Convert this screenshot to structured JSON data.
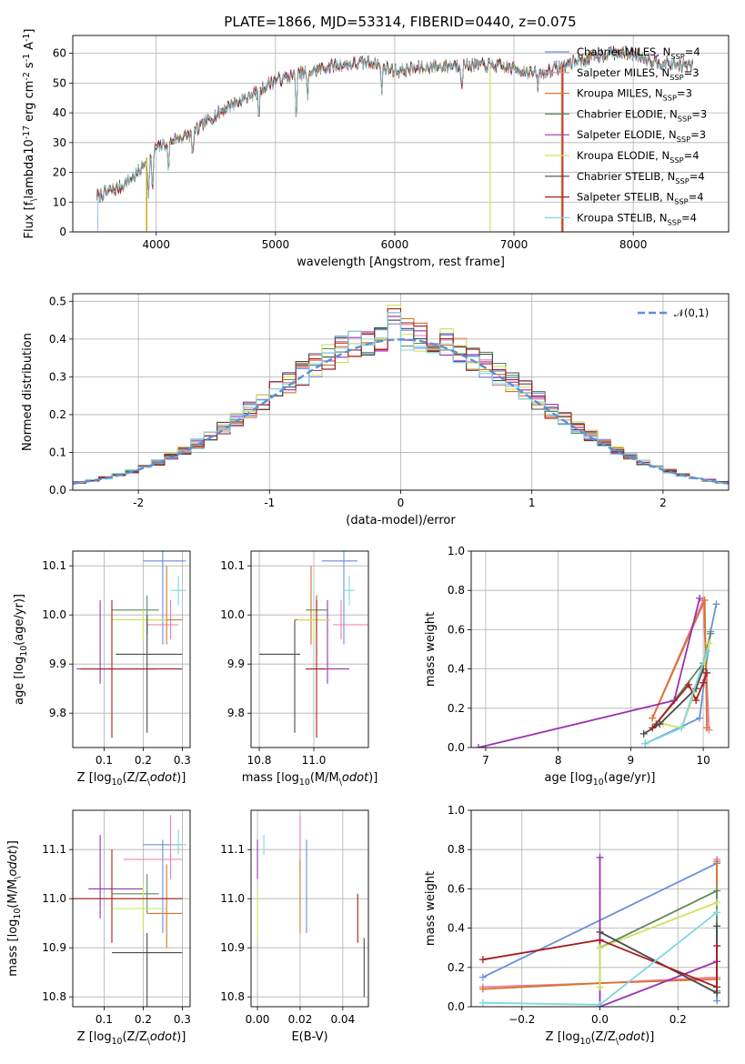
{
  "figure": {
    "title": "PLATE=1866, MJD=53314, FIBERID=0440, z=0.075"
  },
  "colors": {
    "Chabrier MILES": "#6a8fdc",
    "Salpeter MILES": "#e87fa6",
    "Kroupa MILES": "#d8742c",
    "Chabrier ELODIE": "#5c8a5e",
    "Salpeter ELODIE": "#9b32b4",
    "Kroupa ELODIE": "#cfe25a",
    "Chabrier STELIB": "#4a4a4a",
    "Salpeter STELIB": "#a81e1e",
    "Kroupa STELIB": "#80d6e0",
    "normal_curve": "#5b8fd6"
  },
  "legend": {
    "entries": [
      "Chabrier MILES, N$_{SSP}$=4",
      "Salpeter MILES, N$_{SSP}$=3",
      "Kroupa MILES, N$_{SSP}$=3",
      "Chabrier ELODIE, N$_{SSP}$=3",
      "Salpeter ELODIE, N$_{SSP}$=3",
      "Kroupa ELODIE, N$_{SSP}$=4",
      "Chabrier STELIB, N$_{SSP}$=4",
      "Salpeter STELIB, N$_{SSP}$=4",
      "Kroupa STELIB, N$_{SSP}$=4"
    ]
  },
  "chart_data": [
    {
      "id": "spectrum",
      "type": "line",
      "xlabel": "wavelength [Angstrom, rest frame]",
      "ylabel": "Flux [f$_\\lambda$10$^{-17}$ erg cm$^{-2}$ s$^{-1}$ A$^{-1}$]",
      "xlim": [
        3300,
        8800
      ],
      "ylim": [
        0,
        66
      ],
      "xticks": [
        4000,
        5000,
        6000,
        7000,
        8000
      ],
      "yticks": [
        0,
        10,
        20,
        30,
        40,
        50,
        60
      ],
      "x_range_data": [
        3500,
        8500
      ],
      "continuum_knots": [
        [
          3500,
          12
        ],
        [
          3700,
          15
        ],
        [
          3850,
          20
        ],
        [
          4000,
          28
        ],
        [
          4150,
          31
        ],
        [
          4300,
          33
        ],
        [
          4450,
          38
        ],
        [
          4600,
          42
        ],
        [
          4800,
          46
        ],
        [
          5000,
          51
        ],
        [
          5200,
          53
        ],
        [
          5500,
          56
        ],
        [
          5800,
          57
        ],
        [
          6000,
          54
        ],
        [
          6200,
          55
        ],
        [
          6500,
          56
        ],
        [
          6800,
          56
        ],
        [
          7000,
          55
        ],
        [
          7200,
          53
        ],
        [
          7500,
          57
        ],
        [
          7800,
          60
        ],
        [
          8000,
          60
        ],
        [
          8200,
          57
        ],
        [
          8400,
          56
        ],
        [
          8500,
          56
        ]
      ],
      "absorption_features": [
        [
          3934,
          14
        ],
        [
          3968,
          13
        ],
        [
          4102,
          10
        ],
        [
          4304,
          8
        ],
        [
          4861,
          9
        ],
        [
          5175,
          14
        ],
        [
          5270,
          10
        ],
        [
          5890,
          9
        ],
        [
          6563,
          6
        ],
        [
          7200,
          4
        ]
      ]
    },
    {
      "id": "residual_hist",
      "type": "line",
      "xlabel": "(data-model)/error",
      "ylabel": "Normed distribution",
      "xlim": [
        -2.5,
        2.5
      ],
      "ylim": [
        0,
        0.52
      ],
      "xticks": [
        -2,
        -1,
        0,
        1,
        2
      ],
      "yticks": [
        0.0,
        0.1,
        0.2,
        0.3,
        0.4,
        0.5
      ],
      "bin_width": 0.1,
      "normal_label": "$\\mathcal{N}(0,1)$",
      "hist_max_per_series": [
        0.44,
        0.46,
        0.47,
        0.45,
        0.46,
        0.49,
        0.45,
        0.48,
        0.47
      ]
    },
    {
      "id": "age_vs_Z",
      "type": "scatter",
      "xlabel": "Z [log$_{10}$(Z/Z$_\\odot$)]",
      "ylabel": "age  [log$_{10}$(age/yr)]",
      "xlim": [
        0.02,
        0.32
      ],
      "ylim": [
        9.73,
        10.13
      ],
      "xticks": [
        0.1,
        0.2,
        0.3
      ],
      "yticks": [
        9.8,
        9.9,
        10.0,
        10.1
      ],
      "points": [
        {
          "series": "Chabrier MILES",
          "x": 0.25,
          "y": 10.11,
          "xerr": [
            0.05,
            0.06
          ],
          "yerr": [
            0.17,
            0.02
          ]
        },
        {
          "series": "Salpeter MILES",
          "x": 0.27,
          "y": 9.98,
          "xerr": [
            0.06,
            0.02
          ],
          "yerr": [
            0.03,
            0.05
          ]
        },
        {
          "series": "Kroupa MILES",
          "x": 0.26,
          "y": 9.99,
          "xerr": [
            0.05,
            0.04
          ],
          "yerr": [
            0.05,
            0.11
          ]
        },
        {
          "series": "Chabrier ELODIE",
          "x": 0.21,
          "y": 10.01,
          "xerr": [
            0.09,
            0.03
          ],
          "yerr": [
            0.05,
            0.03
          ]
        },
        {
          "series": "Salpeter ELODIE",
          "x": 0.09,
          "y": 9.89,
          "xerr": [
            0.06,
            0.14
          ],
          "yerr": [
            0.03,
            0.14
          ]
        },
        {
          "series": "Kroupa ELODIE",
          "x": 0.2,
          "y": 9.99,
          "xerr": [
            0.08,
            0.06
          ],
          "yerr": [
            0.04,
            0.02
          ]
        },
        {
          "series": "Chabrier STELIB",
          "x": 0.21,
          "y": 9.92,
          "xerr": [
            0.08,
            0.09
          ],
          "yerr": [
            0.16,
            0.08
          ]
        },
        {
          "series": "Salpeter STELIB",
          "x": 0.12,
          "y": 9.89,
          "xerr": [
            0.08,
            0.18
          ],
          "yerr": [
            0.14,
            0.14
          ]
        },
        {
          "series": "Kroupa STELIB",
          "x": 0.29,
          "y": 10.05,
          "xerr": [
            0.02,
            0.02
          ],
          "yerr": [
            0.03,
            0.03
          ]
        }
      ]
    },
    {
      "id": "age_vs_mass",
      "type": "scatter",
      "xlabel": "mass [log$_{10}$(M/M$_\\odot$)]",
      "ylabel": "",
      "xlim": [
        10.77,
        11.2
      ],
      "ylim": [
        9.73,
        10.13
      ],
      "xticks": [
        10.8,
        11.0
      ],
      "yticks": [
        9.8,
        9.9,
        10.0,
        10.1
      ],
      "points": [
        {
          "series": "Chabrier MILES",
          "x": 11.11,
          "y": 10.11,
          "xerr": [
            0.08,
            0.05
          ],
          "yerr": [
            0.17,
            0.02
          ]
        },
        {
          "series": "Salpeter MILES",
          "x": 11.1,
          "y": 9.98,
          "xerr": [
            0.03,
            0.1
          ],
          "yerr": [
            0.03,
            0.05
          ]
        },
        {
          "series": "Kroupa MILES",
          "x": 10.99,
          "y": 9.99,
          "xerr": [
            0.06,
            0.07
          ],
          "yerr": [
            0.05,
            0.11
          ]
        },
        {
          "series": "Chabrier ELODIE",
          "x": 11.01,
          "y": 10.01,
          "xerr": [
            0.04,
            0.04
          ],
          "yerr": [
            0.05,
            0.03
          ]
        },
        {
          "series": "Salpeter ELODIE",
          "x": 11.05,
          "y": 9.89,
          "xerr": [
            0.03,
            0.08
          ],
          "yerr": [
            0.03,
            0.14
          ]
        },
        {
          "series": "Kroupa ELODIE",
          "x": 11.0,
          "y": 9.99,
          "xerr": [
            0.06,
            0.06
          ],
          "yerr": [
            0.04,
            0.02
          ]
        },
        {
          "series": "Chabrier STELIB",
          "x": 10.93,
          "y": 9.92,
          "xerr": [
            0.13,
            0.02
          ],
          "yerr": [
            0.16,
            0.07
          ]
        },
        {
          "series": "Salpeter STELIB",
          "x": 11.01,
          "y": 9.89,
          "xerr": [
            0.04,
            0.03
          ],
          "yerr": [
            0.14,
            0.14
          ]
        },
        {
          "series": "Kroupa STELIB",
          "x": 11.13,
          "y": 10.05,
          "xerr": [
            0.02,
            0.02
          ],
          "yerr": [
            0.03,
            0.03
          ]
        }
      ]
    },
    {
      "id": "weight_vs_age",
      "type": "line",
      "xlabel": "age  [log$_{10}$(age/yr)]",
      "ylabel": "mass weight",
      "xlim": [
        6.8,
        10.35
      ],
      "ylim": [
        0,
        1.0
      ],
      "xticks": [
        7,
        8,
        9,
        10
      ],
      "yticks": [
        0.0,
        0.2,
        0.4,
        0.6,
        0.8,
        1.0
      ],
      "series": [
        {
          "name": "Chabrier MILES",
          "points": [
            [
              9.2,
              0.02
            ],
            [
              9.95,
              0.15
            ],
            [
              10.1,
              0.59
            ],
            [
              10.18,
              0.73
            ]
          ]
        },
        {
          "name": "Salpeter MILES",
          "points": [
            [
              9.3,
              0.15
            ],
            [
              10.0,
              0.75
            ],
            [
              10.08,
              0.09
            ]
          ]
        },
        {
          "name": "Kroupa MILES",
          "points": [
            [
              9.3,
              0.15
            ],
            [
              10.02,
              0.75
            ],
            [
              10.05,
              0.1
            ]
          ]
        },
        {
          "name": "Chabrier ELODIE",
          "points": [
            [
              9.35,
              0.12
            ],
            [
              10.0,
              0.43
            ],
            [
              10.1,
              0.58
            ]
          ]
        },
        {
          "name": "Salpeter ELODIE",
          "points": [
            [
              6.9,
              0.0
            ],
            [
              9.6,
              0.24
            ],
            [
              9.95,
              0.76
            ]
          ]
        },
        {
          "name": "Kroupa ELODIE",
          "points": [
            [
              9.45,
              0.12
            ],
            [
              9.7,
              0.1
            ],
            [
              10.0,
              0.4
            ],
            [
              10.08,
              0.53
            ]
          ]
        },
        {
          "name": "Chabrier STELIB",
          "points": [
            [
              9.18,
              0.07
            ],
            [
              9.4,
              0.12
            ],
            [
              9.9,
              0.3
            ],
            [
              10.0,
              0.4
            ]
          ]
        },
        {
          "name": "Salpeter STELIB",
          "points": [
            [
              9.3,
              0.1
            ],
            [
              9.8,
              0.32
            ],
            [
              9.9,
              0.24
            ],
            [
              10.0,
              0.33
            ],
            [
              10.05,
              0.38
            ]
          ]
        },
        {
          "name": "Kroupa STELIB",
          "points": [
            [
              9.2,
              0.02
            ],
            [
              9.7,
              0.1
            ],
            [
              10.05,
              0.49
            ]
          ]
        }
      ]
    },
    {
      "id": "mass_vs_Z",
      "type": "scatter",
      "xlabel": "Z [log$_{10}$(Z/Z$_\\odot$)]",
      "ylabel": "mass [log$_{10}$(M/M$_\\odot$)]",
      "xlim": [
        0.02,
        0.32
      ],
      "ylim": [
        10.78,
        11.18
      ],
      "xticks": [
        0.1,
        0.2,
        0.3
      ],
      "yticks": [
        10.8,
        10.9,
        11.0,
        11.1
      ],
      "points": [
        {
          "series": "Chabrier MILES",
          "x": 0.25,
          "y": 11.11,
          "xerr": [
            0.05,
            0.05
          ],
          "yerr": [
            0.18,
            0.01
          ]
        },
        {
          "series": "Salpeter MILES",
          "x": 0.27,
          "y": 11.08,
          "xerr": [
            0.12,
            0.03
          ],
          "yerr": [
            0.04,
            0.09
          ]
        },
        {
          "series": "Kroupa MILES",
          "x": 0.26,
          "y": 10.97,
          "xerr": [
            0.05,
            0.04
          ],
          "yerr": [
            0.07,
            0.1
          ]
        },
        {
          "series": "Chabrier ELODIE",
          "x": 0.21,
          "y": 11.01,
          "xerr": [
            0.09,
            0.03
          ],
          "yerr": [
            0.04,
            0.04
          ]
        },
        {
          "series": "Salpeter ELODIE",
          "x": 0.09,
          "y": 11.02,
          "xerr": [
            0.03,
            0.11
          ],
          "yerr": [
            0.06,
            0.11
          ]
        },
        {
          "series": "Kroupa ELODIE",
          "x": 0.2,
          "y": 10.98,
          "xerr": [
            0.08,
            0.06
          ],
          "yerr": [
            0.05,
            0.05
          ]
        },
        {
          "series": "Chabrier STELIB",
          "x": 0.21,
          "y": 10.89,
          "xerr": [
            0.09,
            0.09
          ],
          "yerr": [
            0.13,
            0.04
          ]
        },
        {
          "series": "Salpeter STELIB",
          "x": 0.12,
          "y": 11.0,
          "xerr": [
            0.13,
            0.18
          ],
          "yerr": [
            0.09,
            0.1
          ]
        },
        {
          "series": "Kroupa STELIB",
          "x": 0.29,
          "y": 11.11,
          "xerr": [
            0.02,
            0.02
          ],
          "yerr": [
            0.02,
            0.03
          ]
        }
      ]
    },
    {
      "id": "mass_vs_ebv",
      "type": "scatter",
      "xlabel": "E(B-V)",
      "ylabel": "",
      "xlim": [
        -0.003,
        0.052
      ],
      "ylim": [
        10.78,
        11.18
      ],
      "xticks": [
        0.0,
        0.02,
        0.04
      ],
      "yticks": [
        10.8,
        10.9,
        11.0,
        11.1
      ],
      "points": [
        {
          "series": "Chabrier MILES",
          "x": 0.023,
          "y": 11.01,
          "yerr": [
            0.08,
            0.11
          ]
        },
        {
          "series": "Salpeter MILES",
          "x": 0.02,
          "y": 11.1,
          "yerr": [
            0.05,
            0.07
          ]
        },
        {
          "series": "Kroupa MILES",
          "x": 0.02,
          "y": 11.01,
          "yerr": [
            0.08,
            0.07
          ]
        },
        {
          "series": "Salpeter ELODIE",
          "x": 0.0,
          "y": 11.07,
          "yerr": [
            0.03,
            0.05
          ]
        },
        {
          "series": "Kroupa ELODIE",
          "x": 0.0,
          "y": 10.97,
          "yerr": [
            0.05,
            0.05
          ]
        },
        {
          "series": "Chabrier STELIB",
          "x": 0.05,
          "y": 10.86,
          "yerr": [
            0.06,
            0.06
          ]
        },
        {
          "series": "Salpeter STELIB",
          "x": 0.047,
          "y": 10.96,
          "yerr": [
            0.05,
            0.05
          ]
        },
        {
          "series": "Kroupa STELIB",
          "x": 0.003,
          "y": 11.11,
          "yerr": [
            0.02,
            0.02
          ]
        }
      ]
    },
    {
      "id": "weight_vs_Z",
      "type": "line",
      "xlabel": "Z [log$_{10}$(Z/Z$_\\odot$)]",
      "ylabel": "mass weight",
      "xlim": [
        -0.33,
        0.33
      ],
      "ylim": [
        0,
        1.0
      ],
      "xticks": [
        -0.2,
        0.0,
        0.2
      ],
      "yticks": [
        0.0,
        0.2,
        0.4,
        0.6,
        0.8,
        1.0
      ],
      "series": [
        {
          "name": "Chabrier MILES",
          "points": [
            [
              -0.3,
              0.15
            ],
            [
              0.3,
              0.73
            ],
            [
              0.3,
              0.03
            ]
          ]
        },
        {
          "name": "Salpeter MILES",
          "points": [
            [
              -0.3,
              0.1
            ],
            [
              0.0,
              0.12
            ],
            [
              0.3,
              0.15
            ],
            [
              0.3,
              0.75
            ]
          ]
        },
        {
          "name": "Kroupa MILES",
          "points": [
            [
              -0.3,
              0.09
            ],
            [
              0.0,
              0.12
            ],
            [
              0.3,
              0.14
            ],
            [
              0.3,
              0.74
            ]
          ]
        },
        {
          "name": "Chabrier ELODIE",
          "points": [
            [
              0.0,
              0.3
            ],
            [
              0.3,
              0.59
            ],
            [
              0.3,
              0.08
            ]
          ]
        },
        {
          "name": "Salpeter ELODIE",
          "points": [
            [
              0.0,
              0.76
            ],
            [
              0.0,
              0.0
            ],
            [
              0.3,
              0.23
            ]
          ]
        },
        {
          "name": "Kroupa ELODIE",
          "points": [
            [
              0.0,
              0.1
            ],
            [
              0.0,
              0.3
            ],
            [
              0.3,
              0.53
            ]
          ]
        },
        {
          "name": "Chabrier STELIB",
          "points": [
            [
              0.0,
              0.38
            ],
            [
              0.3,
              0.07
            ],
            [
              0.3,
              0.41
            ]
          ]
        },
        {
          "name": "Salpeter STELIB",
          "points": [
            [
              -0.3,
              0.24
            ],
            [
              0.0,
              0.34
            ],
            [
              0.3,
              0.1
            ],
            [
              0.3,
              0.31
            ]
          ]
        },
        {
          "name": "Kroupa STELIB",
          "points": [
            [
              -0.3,
              0.02
            ],
            [
              0.0,
              0.01
            ],
            [
              0.3,
              0.48
            ]
          ]
        }
      ]
    }
  ]
}
